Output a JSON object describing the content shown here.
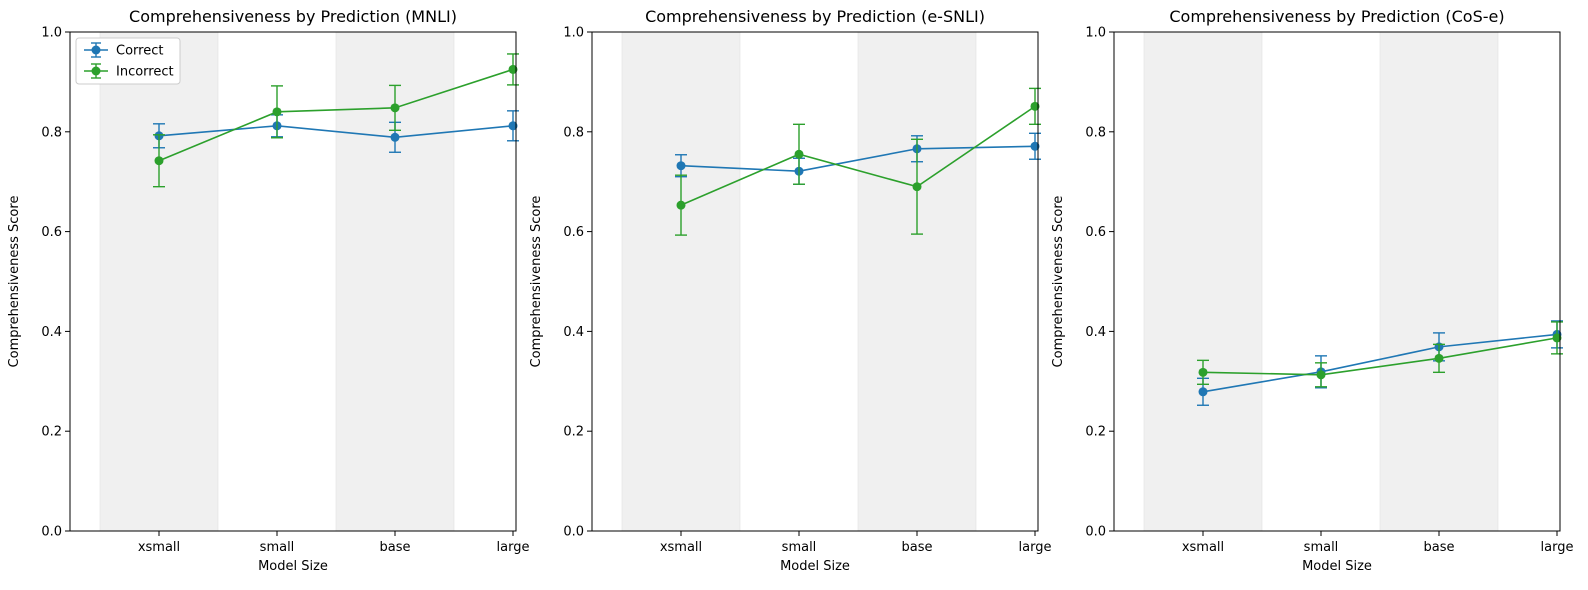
{
  "chart_data": [
    {
      "type": "line",
      "title": "Comprehensiveness by Prediction (MNLI)",
      "xlabel": "Model Size",
      "ylabel": "Comprehensiveness Score",
      "categories": [
        "xsmall",
        "small",
        "base",
        "large"
      ],
      "ylim": [
        0,
        1.0
      ],
      "yticks": [
        "0.0",
        "0.2",
        "0.4",
        "0.6",
        "0.8",
        "1.0"
      ],
      "grid": false,
      "shaded_bands": [
        "xsmall",
        "base"
      ],
      "legend": {
        "placement": "top-left",
        "show": true
      },
      "series": [
        {
          "name": "Correct",
          "color": "#1f77b4",
          "values": [
            0.792,
            0.812,
            0.789,
            0.812
          ],
          "err": [
            0.024,
            0.022,
            0.03,
            0.03
          ]
        },
        {
          "name": "Incorrect",
          "color": "#2ca02c",
          "values": [
            0.742,
            0.84,
            0.848,
            0.925
          ],
          "err": [
            0.052,
            0.052,
            0.045,
            0.031
          ]
        }
      ]
    },
    {
      "type": "line",
      "title": "Comprehensiveness by Prediction (e-SNLI)",
      "xlabel": "Model Size",
      "ylabel": "Comprehensiveness Score",
      "categories": [
        "xsmall",
        "small",
        "base",
        "large"
      ],
      "ylim": [
        0,
        1.0
      ],
      "yticks": [
        "0.0",
        "0.2",
        "0.4",
        "0.6",
        "0.8",
        "1.0"
      ],
      "grid": false,
      "shaded_bands": [
        "xsmall",
        "base"
      ],
      "legend": {
        "show": false
      },
      "series": [
        {
          "name": "Correct",
          "color": "#1f77b4",
          "values": [
            0.732,
            0.721,
            0.766,
            0.771
          ],
          "err": [
            0.022,
            0.026,
            0.026,
            0.026
          ]
        },
        {
          "name": "Incorrect",
          "color": "#2ca02c",
          "values": [
            0.653,
            0.755,
            0.69,
            0.851
          ],
          "err": [
            0.06,
            0.06,
            0.095,
            0.036
          ]
        }
      ]
    },
    {
      "type": "line",
      "title": "Comprehensiveness by Prediction (CoS-e)",
      "xlabel": "Model Size",
      "ylabel": "Comprehensiveness Score",
      "categories": [
        "xsmall",
        "small",
        "base",
        "large"
      ],
      "ylim": [
        0,
        1.0
      ],
      "yticks": [
        "0.0",
        "0.2",
        "0.4",
        "0.6",
        "0.8",
        "1.0"
      ],
      "grid": false,
      "shaded_bands": [
        "xsmall",
        "base"
      ],
      "legend": {
        "show": false
      },
      "series": [
        {
          "name": "Correct",
          "color": "#1f77b4",
          "values": [
            0.279,
            0.319,
            0.369,
            0.394
          ],
          "err": [
            0.027,
            0.032,
            0.028,
            0.027
          ]
        },
        {
          "name": "Incorrect",
          "color": "#2ca02c",
          "values": [
            0.318,
            0.313,
            0.346,
            0.387
          ],
          "err": [
            0.024,
            0.024,
            0.028,
            0.032
          ]
        }
      ]
    }
  ]
}
